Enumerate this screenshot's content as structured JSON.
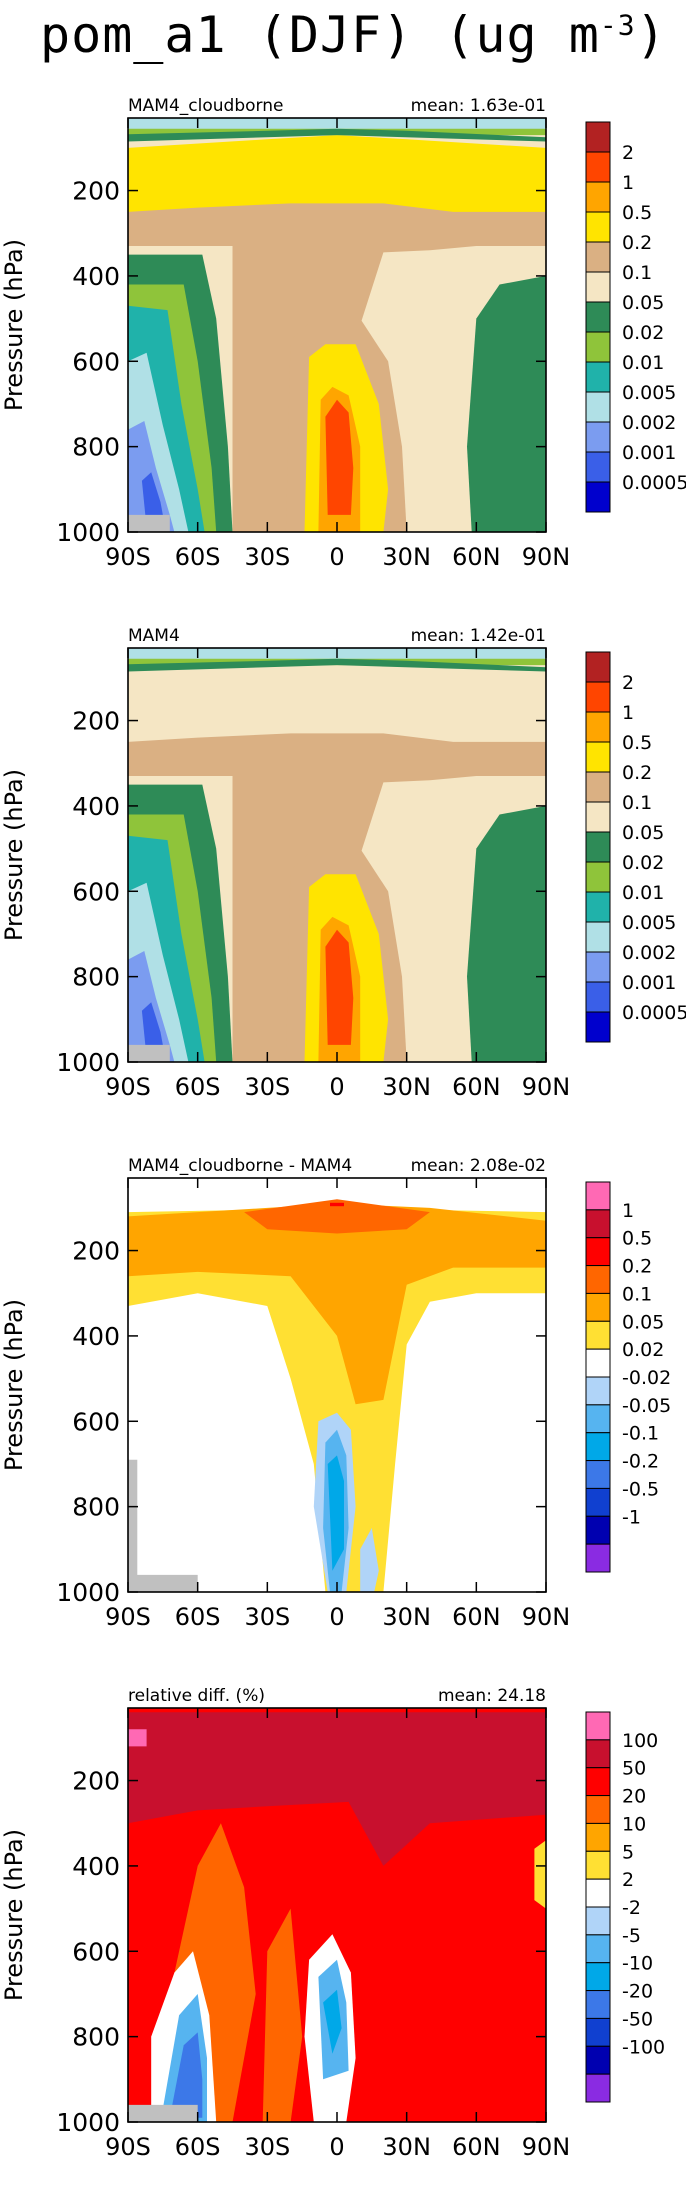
{
  "title_main": "pom_a1 (DJF) (ug m",
  "title_exp": "-3",
  "title_tail": ")",
  "chart_data": [
    {
      "type": "contour",
      "label_left": "MAM4_cloudborne",
      "label_right": "mean: 1.63e-01",
      "ylabel": "Pressure (hPa)",
      "yticks": [
        200,
        400,
        600,
        800,
        1000
      ],
      "ylim": [
        1000,
        30
      ],
      "xticks": [
        "90S",
        "60S",
        "30S",
        "0",
        "30N",
        "60N",
        "90N"
      ],
      "xlim": [
        -90,
        90
      ],
      "levels": [
        "2",
        "1",
        "0.5",
        "0.2",
        "0.1",
        "0.05",
        "0.02",
        "0.01",
        "0.005",
        "0.002",
        "0.001",
        "0.0005"
      ],
      "colors": [
        "#b22222",
        "#ff4500",
        "#ffa500",
        "#ffe400",
        "#dab083",
        "#f5e6c4",
        "#2e8b57",
        "#8fc43a",
        "#20b2aa",
        "#b0e0e6",
        "#7b9cf0",
        "#3a5fe8",
        "#0000cd"
      ]
    },
    {
      "type": "contour",
      "label_left": "MAM4",
      "label_right": "mean: 1.42e-01",
      "ylabel": "Pressure (hPa)",
      "yticks": [
        200,
        400,
        600,
        800,
        1000
      ],
      "ylim": [
        1000,
        30
      ],
      "xticks": [
        "90S",
        "60S",
        "30S",
        "0",
        "30N",
        "60N",
        "90N"
      ],
      "xlim": [
        -90,
        90
      ],
      "levels": [
        "2",
        "1",
        "0.5",
        "0.2",
        "0.1",
        "0.05",
        "0.02",
        "0.01",
        "0.005",
        "0.002",
        "0.001",
        "0.0005"
      ],
      "colors": [
        "#b22222",
        "#ff4500",
        "#ffa500",
        "#ffe400",
        "#dab083",
        "#f5e6c4",
        "#2e8b57",
        "#8fc43a",
        "#20b2aa",
        "#b0e0e6",
        "#7b9cf0",
        "#3a5fe8",
        "#0000cd"
      ]
    },
    {
      "type": "contour",
      "label_left": "MAM4_cloudborne - MAM4",
      "label_right": "mean: 2.08e-02",
      "ylabel": "Pressure (hPa)",
      "yticks": [
        200,
        400,
        600,
        800,
        1000
      ],
      "ylim": [
        1000,
        30
      ],
      "xticks": [
        "90S",
        "60S",
        "30S",
        "0",
        "30N",
        "60N",
        "90N"
      ],
      "xlim": [
        -90,
        90
      ],
      "levels": [
        "1",
        "0.5",
        "0.2",
        "0.1",
        "0.05",
        "0.02",
        "-0.02",
        "-0.05",
        "-0.1",
        "-0.2",
        "-0.5",
        "-1"
      ],
      "colors": [
        "#ff69b4",
        "#c8102e",
        "#ff0000",
        "#ff6600",
        "#ffa500",
        "#ffe033",
        "#ffffff",
        "#b0d4f8",
        "#56b4f0",
        "#00a8e8",
        "#3c78e8",
        "#1040d0",
        "#0000b0",
        "#8a2be2"
      ]
    },
    {
      "type": "contour",
      "label_left": "relative diff. (%)",
      "label_right": "mean: 24.18",
      "ylabel": "Pressure (hPa)",
      "yticks": [
        200,
        400,
        600,
        800,
        1000
      ],
      "ylim": [
        1000,
        30
      ],
      "xticks": [
        "90S",
        "60S",
        "30S",
        "0",
        "30N",
        "60N",
        "90N"
      ],
      "xlim": [
        -90,
        90
      ],
      "levels": [
        "100",
        "50",
        "20",
        "10",
        "5",
        "2",
        "-2",
        "-5",
        "-10",
        "-20",
        "-50",
        "-100"
      ],
      "colors": [
        "#ff69b4",
        "#c8102e",
        "#ff0000",
        "#ff6600",
        "#ffa500",
        "#ffe033",
        "#ffffff",
        "#b0d4f8",
        "#56b4f0",
        "#00a8e8",
        "#3c78e8",
        "#1040d0",
        "#0000b0",
        "#8a2be2"
      ]
    }
  ]
}
